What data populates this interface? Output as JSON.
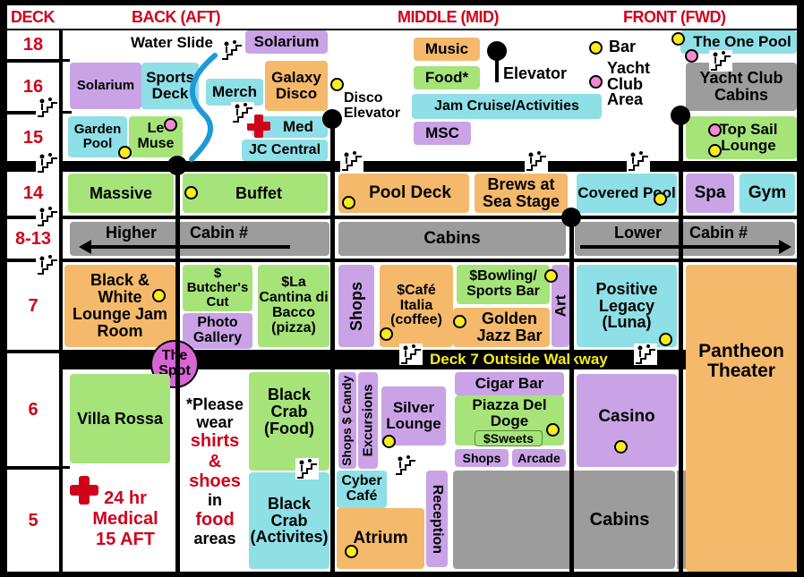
{
  "header": {
    "deck": "DECK",
    "back": "BACK (AFT)",
    "middle": "MIDDLE (MID)",
    "front": "FRONT (FWD)"
  },
  "decks": [
    "18",
    "16",
    "15",
    "14",
    "8-13",
    "7",
    "6",
    "5"
  ],
  "legend": {
    "music": "Music",
    "food": "Food*",
    "jam": "Jam Cruise/Activities",
    "msc": "MSC",
    "elevator": "Elevator",
    "bar": "Bar",
    "yacht": "Yacht Club Area"
  },
  "rooms": {
    "water_slide": "Water Slide",
    "solarium18": "Solarium",
    "solarium16": "Solarium",
    "sports_deck": "Sports Deck",
    "merch": "Merch",
    "galaxy": "Galaxy Disco",
    "disco_elev": "Disco Elevator",
    "garden": "Garden Pool",
    "lemuse": "Le Muse",
    "med": "Med",
    "jc": "JC Central",
    "one_pool": "The One Pool",
    "yacht_cabins": "Yacht Club Cabins",
    "top_sail": "Top Sail Lounge",
    "massive": "Massive",
    "buffet": "Buffet",
    "pool_deck": "Pool Deck",
    "brews": "Brews at Sea Stage",
    "covered": "Covered Pool",
    "spa": "Spa",
    "gym": "Gym",
    "higher": "Higher",
    "cabin_num_a": "Cabin #",
    "cabins_mid": "Cabins",
    "lower": "Lower",
    "cabin_num_b": "Cabin #",
    "black_white": "Black & White Lounge Jam Room",
    "butcher": "$ Butcher's Cut",
    "photo": "Photo Gallery",
    "lacantina": "$La Cantina di Bacco (pizza)",
    "shops7": "Shops",
    "cafe": "$Café Italia (coffee)",
    "bowling": "$Bowling/ Sports Bar",
    "golden": "Golden Jazz Bar",
    "art": "Art",
    "positive": "Positive Legacy (Luna)",
    "pantheon": "Pantheon Theater",
    "spot": "The Spot",
    "walkway": "Deck 7 Outside Walkway",
    "villa": "Villa Rossa",
    "please_a": "*Please",
    "please_b": "wear",
    "please_c": "shirts",
    "please_d": "&",
    "please_e": "shoes",
    "please_f": "in",
    "please_g": "food",
    "please_h": "areas",
    "black_crab_food": "Black Crab (Food)",
    "shops_candy": "Shops $ Candy",
    "excursions": "Excursions",
    "silver": "Silver Lounge",
    "cigar": "Cigar Bar",
    "piazza": "Piazza Del Doge",
    "sweets": "$Sweets",
    "shops6": "Shops",
    "arcade": "Arcade",
    "casino": "Casino",
    "medical": "24 hr Medical 15 AFT",
    "black_crab_act": "Black Crab (Activites)",
    "cyber": "Cyber Café",
    "atrium": "Atrium",
    "reception": "Reception",
    "cabins5": "Cabins"
  }
}
